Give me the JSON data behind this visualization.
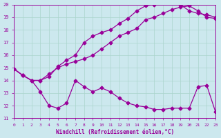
{
  "xlabel": "Windchill (Refroidissement éolien,°C)",
  "xlim": [
    0,
    23
  ],
  "ylim": [
    11,
    20
  ],
  "yticks": [
    11,
    12,
    13,
    14,
    15,
    16,
    17,
    18,
    19,
    20
  ],
  "xticks": [
    0,
    1,
    2,
    3,
    4,
    5,
    6,
    7,
    8,
    9,
    10,
    11,
    12,
    13,
    14,
    15,
    16,
    17,
    18,
    19,
    20,
    21,
    22,
    23
  ],
  "bg_color": "#cce8ee",
  "line_color": "#990099",
  "grid_color": "#aad4cc",
  "line1_x": [
    0,
    1,
    2,
    3,
    4,
    5,
    6,
    7,
    8,
    9,
    10,
    11,
    12,
    13,
    14,
    15,
    16,
    17,
    18,
    19,
    20,
    21,
    22,
    23
  ],
  "line1_y": [
    14.9,
    14.4,
    14.0,
    13.1,
    12.0,
    11.8,
    12.2,
    14.0,
    13.5,
    13.1,
    13.4,
    13.1,
    12.6,
    12.2,
    12.0,
    11.9,
    11.7,
    11.7,
    11.8,
    11.8,
    11.8,
    13.5,
    13.6,
    11.5
  ],
  "line2_x": [
    0,
    1,
    2,
    3,
    4,
    5,
    6,
    7,
    8,
    9,
    10,
    11,
    12,
    13,
    14,
    15,
    16,
    17,
    18,
    19,
    20,
    21,
    22,
    23
  ],
  "line2_y": [
    14.9,
    14.4,
    14.0,
    14.0,
    14.5,
    15.0,
    15.3,
    15.5,
    15.7,
    16.0,
    16.5,
    17.0,
    17.5,
    17.8,
    18.1,
    18.8,
    19.0,
    19.3,
    19.6,
    19.8,
    19.9,
    19.5,
    19.0,
    18.9
  ],
  "line3_x": [
    0,
    1,
    2,
    3,
    4,
    5,
    6,
    7,
    8,
    9,
    10,
    11,
    12,
    13,
    14,
    15,
    16,
    17,
    18,
    19,
    20,
    21,
    22,
    23
  ],
  "line3_y": [
    14.9,
    14.4,
    14.0,
    14.0,
    14.3,
    15.1,
    15.6,
    16.0,
    17.0,
    17.5,
    17.8,
    18.0,
    18.5,
    18.9,
    19.5,
    19.9,
    20.0,
    20.2,
    20.3,
    20.0,
    19.5,
    19.3,
    19.2,
    19.0
  ]
}
